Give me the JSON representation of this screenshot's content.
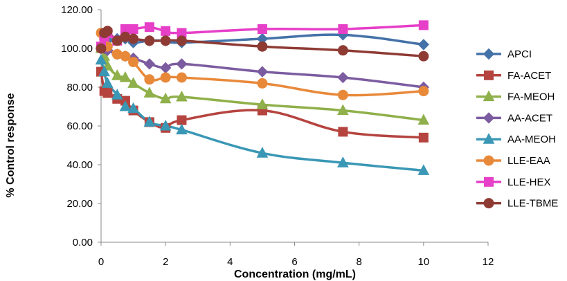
{
  "chart_data": {
    "type": "line",
    "title": "",
    "xlabel": "Concentration (mg/mL)",
    "ylabel": "% Control response",
    "xlim": [
      0,
      12
    ],
    "ylim": [
      0,
      120
    ],
    "x_ticks": [
      "0",
      "2",
      "4",
      "6",
      "8",
      "10",
      "12"
    ],
    "y_ticks": [
      "0.00",
      "20.00",
      "40.00",
      "60.00",
      "80.00",
      "100.00",
      "120.00"
    ],
    "grid": false,
    "legend_position": "right",
    "smooth": true,
    "series": [
      {
        "name": "APCI",
        "color": "#4472A8",
        "marker": "diamond",
        "points": [
          [
            0,
            100
          ],
          [
            0.1,
            102
          ],
          [
            0.2,
            104
          ],
          [
            0.5,
            105
          ],
          [
            0.75,
            105
          ],
          [
            1,
            103
          ],
          [
            1.5,
            104
          ],
          [
            2,
            104
          ],
          [
            2.5,
            103
          ],
          [
            5,
            105
          ],
          [
            7.5,
            107
          ],
          [
            10,
            102
          ]
        ]
      },
      {
        "name": "FA-ACET",
        "color": "#B5443F",
        "marker": "square",
        "points": [
          [
            0,
            88
          ],
          [
            0.1,
            78
          ],
          [
            0.2,
            77
          ],
          [
            0.5,
            74
          ],
          [
            0.75,
            73
          ],
          [
            1,
            68
          ],
          [
            1.5,
            62
          ],
          [
            2,
            59
          ],
          [
            2.5,
            63
          ],
          [
            5,
            68
          ],
          [
            7.5,
            57
          ],
          [
            10,
            54
          ]
        ]
      },
      {
        "name": "FA-MEOH",
        "color": "#8FB04A",
        "marker": "triangle",
        "points": [
          [
            0,
            100
          ],
          [
            0.1,
            96
          ],
          [
            0.2,
            91
          ],
          [
            0.5,
            86
          ],
          [
            0.75,
            85
          ],
          [
            1,
            82
          ],
          [
            1.5,
            77
          ],
          [
            2,
            74
          ],
          [
            2.5,
            75
          ],
          [
            5,
            71
          ],
          [
            7.5,
            68
          ],
          [
            10,
            63
          ]
        ]
      },
      {
        "name": "AA-ACET",
        "color": "#7C5CA0",
        "marker": "diamond",
        "points": [
          [
            0,
            100
          ],
          [
            0.1,
            100
          ],
          [
            0.2,
            99
          ],
          [
            0.5,
            97
          ],
          [
            0.75,
            96
          ],
          [
            1,
            95
          ],
          [
            1.5,
            92
          ],
          [
            2,
            90
          ],
          [
            2.5,
            92
          ],
          [
            5,
            88
          ],
          [
            7.5,
            85
          ],
          [
            10,
            80
          ]
        ]
      },
      {
        "name": "AA-MEOH",
        "color": "#3A97B5",
        "marker": "triangle",
        "points": [
          [
            0,
            94
          ],
          [
            0.1,
            88
          ],
          [
            0.2,
            82
          ],
          [
            0.5,
            76
          ],
          [
            0.75,
            70
          ],
          [
            1,
            69
          ],
          [
            1.5,
            62
          ],
          [
            2,
            60
          ],
          [
            2.5,
            58
          ],
          [
            5,
            46
          ],
          [
            7.5,
            41
          ],
          [
            10,
            37
          ]
        ]
      },
      {
        "name": "LLE-EAA",
        "color": "#E8893A",
        "marker": "circle",
        "points": [
          [
            0,
            108
          ],
          [
            0.1,
            105
          ],
          [
            0.2,
            101
          ],
          [
            0.5,
            97
          ],
          [
            0.75,
            96
          ],
          [
            1,
            93
          ],
          [
            1.5,
            84
          ],
          [
            2,
            85
          ],
          [
            2.5,
            85
          ],
          [
            5,
            82
          ],
          [
            7.5,
            76
          ],
          [
            10,
            78
          ]
        ]
      },
      {
        "name": "LLE-HEX",
        "color": "#E63FC8",
        "marker": "square",
        "points": [
          [
            0,
            101
          ],
          [
            0.1,
            106
          ],
          [
            0.2,
            108
          ],
          [
            0.5,
            104
          ],
          [
            0.75,
            110
          ],
          [
            1,
            110
          ],
          [
            1.5,
            111
          ],
          [
            2,
            109
          ],
          [
            2.5,
            108
          ],
          [
            5,
            110
          ],
          [
            7.5,
            110
          ],
          [
            10,
            112
          ]
        ]
      },
      {
        "name": "LLE-TBME",
        "color": "#8E3B34",
        "marker": "circle",
        "points": [
          [
            0,
            100
          ],
          [
            0.1,
            108
          ],
          [
            0.2,
            109
          ],
          [
            0.5,
            104
          ],
          [
            0.75,
            106
          ],
          [
            1,
            105
          ],
          [
            1.5,
            104
          ],
          [
            2,
            104
          ],
          [
            2.5,
            104
          ],
          [
            5,
            101
          ],
          [
            7.5,
            99
          ],
          [
            10,
            96
          ]
        ]
      }
    ]
  }
}
